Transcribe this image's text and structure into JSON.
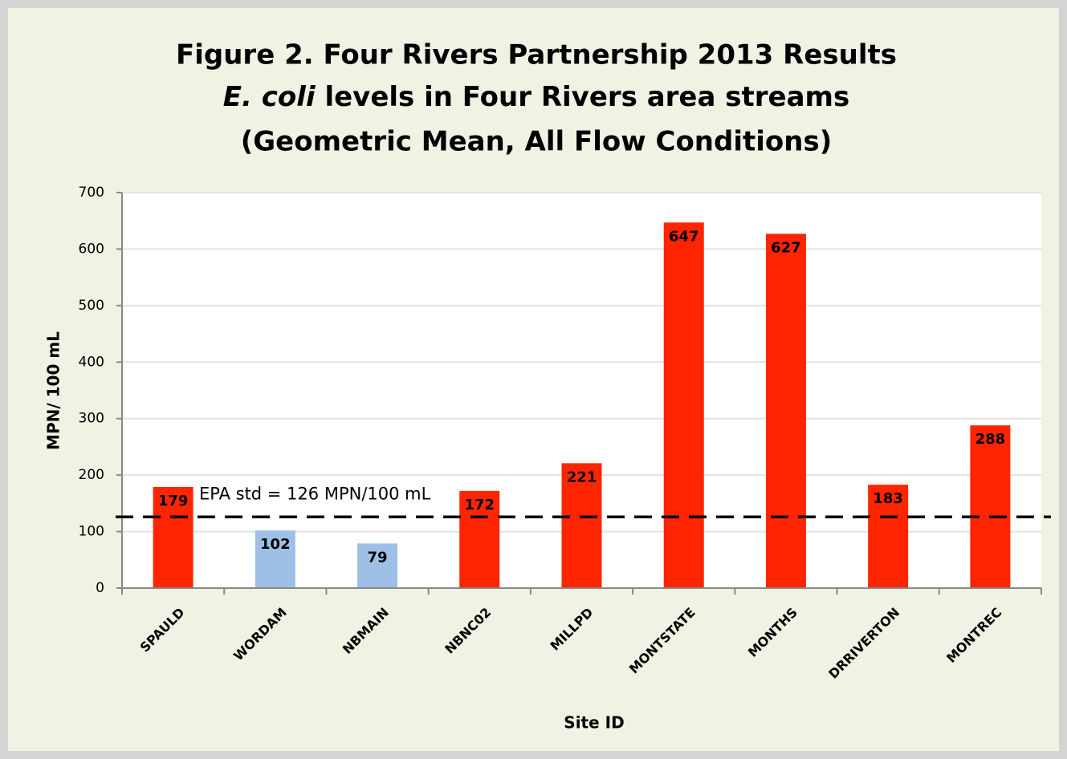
{
  "chart_data": {
    "type": "bar",
    "title": "Figure 2. Four Rivers Partnership 2013 Results",
    "subtitle_italic": "E. coli",
    "subtitle": " levels in Four Rivers area streams",
    "subtitle2": "(Geometric Mean, All Flow Conditions)",
    "x_label": "Site ID",
    "y_label": "MPN/ 100 mL",
    "categories": [
      "SPAULD",
      "WORDAM",
      "NBMAIN",
      "NBNC02",
      "MILLPD",
      "MONTSTATE",
      "MONTHS",
      "DRRIVERTON",
      "MONTREC"
    ],
    "values": [
      179,
      102,
      79,
      172,
      221,
      647,
      627,
      183,
      288
    ],
    "colors": [
      "#ff2500",
      "#9ec0e6",
      "#9ec0e6",
      "#ff2500",
      "#ff2500",
      "#ff2500",
      "#ff2500",
      "#ff2500",
      "#ff2500"
    ],
    "ylim": [
      0,
      700
    ],
    "yticks": [
      0,
      100,
      200,
      300,
      400,
      500,
      600,
      700
    ],
    "grid": true,
    "reference_line": {
      "value": 126,
      "label": "EPA std = 126 MPN/100 mL"
    }
  }
}
